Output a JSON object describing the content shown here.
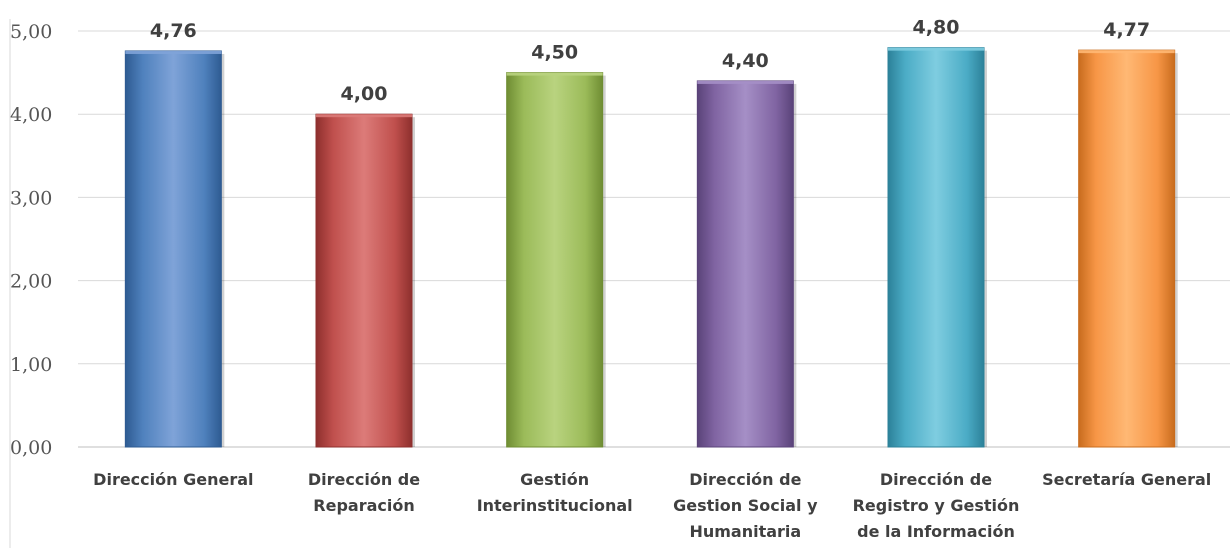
{
  "chart_data": {
    "type": "bar",
    "categories": [
      [
        "Dirección General"
      ],
      [
        "Dirección de",
        "Reparación"
      ],
      [
        "Gestión",
        "Interinstitucional"
      ],
      [
        "Dirección de",
        "Gestion Social y",
        "Humanitaria"
      ],
      [
        "Dirección de",
        "Registro y Gestión",
        "de la Información"
      ],
      [
        "Secretaría General"
      ]
    ],
    "values": [
      4.76,
      4.0,
      4.5,
      4.4,
      4.8,
      4.77
    ],
    "value_labels": [
      "4,76",
      "4,00",
      "4,50",
      "4,40",
      "4,80",
      "4,77"
    ],
    "yticks": [
      0,
      1,
      2,
      3,
      4,
      5
    ],
    "ytick_labels": [
      "0,00",
      "1,00",
      "2,00",
      "3,00",
      "4,00",
      "5,00"
    ],
    "ylim": [
      0,
      5
    ],
    "grid": true,
    "legend": "none",
    "title": "",
    "xlabel": "",
    "ylabel": "",
    "colors": [
      {
        "light": "#7fa3d8",
        "base": "#4f81bd",
        "dark": "#2e5b92"
      },
      {
        "light": "#dc7b79",
        "base": "#c0504d",
        "dark": "#8e2f2d"
      },
      {
        "light": "#b9d37f",
        "base": "#9bbb59",
        "dark": "#6f8d33"
      },
      {
        "light": "#a58fc6",
        "base": "#8064a2",
        "dark": "#5a4379"
      },
      {
        "light": "#7fcde0",
        "base": "#4bacc6",
        "dark": "#2c8199"
      },
      {
        "light": "#ffb874",
        "base": "#f79646",
        "dark": "#c86c1e"
      }
    ]
  }
}
